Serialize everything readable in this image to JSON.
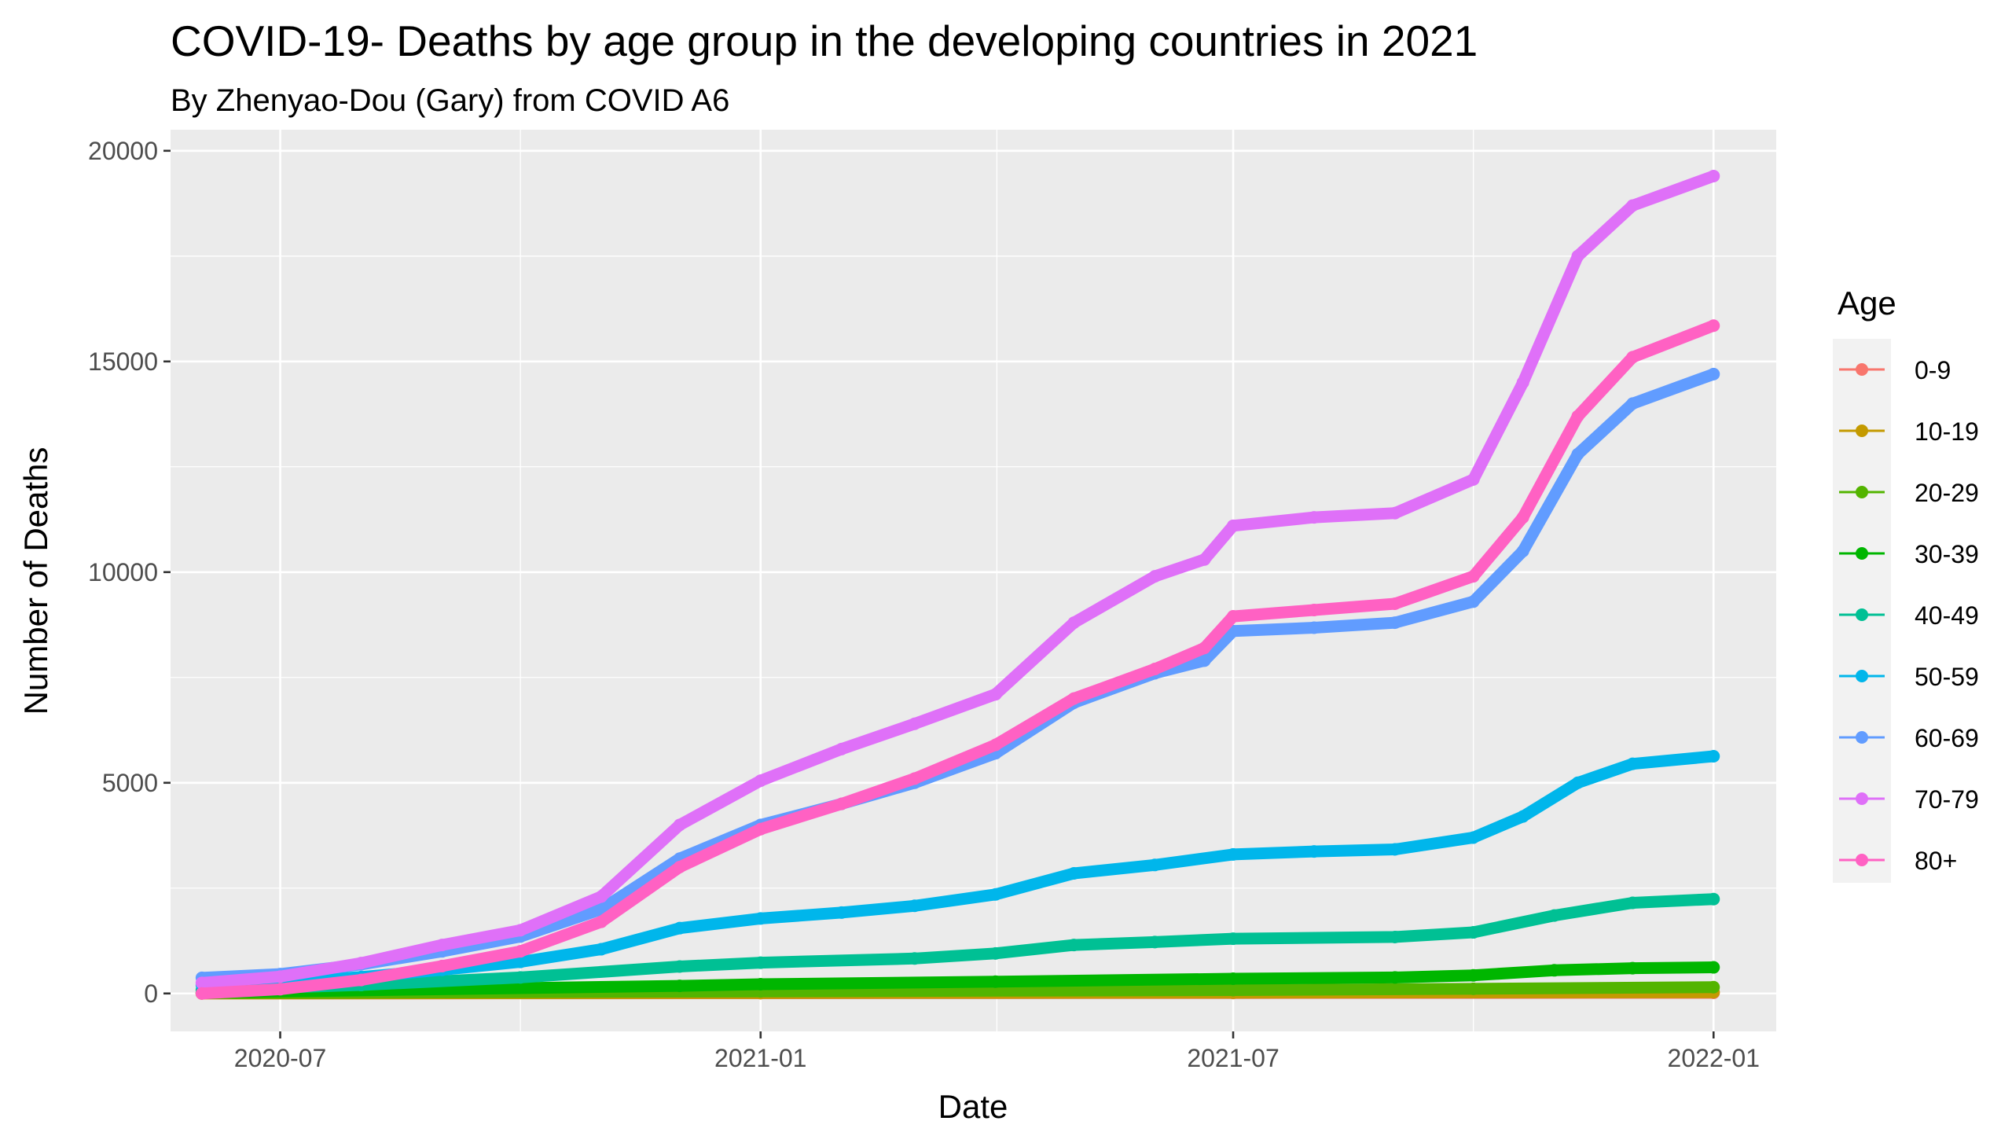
{
  "chart_data": {
    "type": "line",
    "title": "COVID-19- Deaths by age group in the developing countries in 2021",
    "subtitle": "By Zhenyao-Dou (Gary) from COVID A6",
    "xlabel": "Date",
    "ylabel": "Number of Deaths",
    "xlim": [
      "2020-05-20",
      "2022-01-25"
    ],
    "ylim": [
      -900,
      20500
    ],
    "x_ticks": [
      {
        "date": "2020-07-01",
        "label": "2020-07"
      },
      {
        "date": "2021-01-01",
        "label": "2021-01"
      },
      {
        "date": "2021-07-01",
        "label": "2021-07"
      },
      {
        "date": "2022-01-01",
        "label": "2022-01"
      }
    ],
    "y_ticks": [
      {
        "value": 0,
        "label": "0"
      },
      {
        "value": 5000,
        "label": "5000"
      },
      {
        "value": 10000,
        "label": "10000"
      },
      {
        "value": 15000,
        "label": "15000"
      },
      {
        "value": 20000,
        "label": "20000"
      }
    ],
    "grid": true,
    "legend": {
      "title": "Age",
      "position": "right"
    },
    "series": [
      {
        "name": "0-9",
        "color": "#F8766D",
        "points": [
          [
            "2020-06-01",
            0
          ],
          [
            "2021-01-01",
            5
          ],
          [
            "2021-07-01",
            10
          ],
          [
            "2022-01-01",
            15
          ]
        ]
      },
      {
        "name": "10-19",
        "color": "#C49A00",
        "points": [
          [
            "2020-06-01",
            0
          ],
          [
            "2021-01-01",
            10
          ],
          [
            "2021-07-01",
            20
          ],
          [
            "2022-01-01",
            30
          ]
        ]
      },
      {
        "name": "20-29",
        "color": "#53B400",
        "points": [
          [
            "2020-06-01",
            5
          ],
          [
            "2021-01-01",
            50
          ],
          [
            "2021-07-01",
            80
          ],
          [
            "2021-10-01",
            110
          ],
          [
            "2022-01-01",
            150
          ]
        ]
      },
      {
        "name": "30-39",
        "color": "#00B600",
        "points": [
          [
            "2020-06-01",
            20
          ],
          [
            "2020-12-01",
            180
          ],
          [
            "2021-01-01",
            220
          ],
          [
            "2021-04-01",
            280
          ],
          [
            "2021-07-01",
            350
          ],
          [
            "2021-09-01",
            380
          ],
          [
            "2021-10-01",
            430
          ],
          [
            "2021-11-01",
            550
          ],
          [
            "2021-12-01",
            600
          ],
          [
            "2022-01-01",
            620
          ]
        ]
      },
      {
        "name": "40-49",
        "color": "#00C094",
        "points": [
          [
            "2020-06-01",
            80
          ],
          [
            "2020-08-01",
            200
          ],
          [
            "2020-10-01",
            380
          ],
          [
            "2020-12-01",
            640
          ],
          [
            "2021-01-01",
            730
          ],
          [
            "2021-03-01",
            830
          ],
          [
            "2021-04-01",
            950
          ],
          [
            "2021-05-01",
            1150
          ],
          [
            "2021-06-01",
            1220
          ],
          [
            "2021-07-01",
            1300
          ],
          [
            "2021-09-01",
            1340
          ],
          [
            "2021-10-01",
            1450
          ],
          [
            "2021-11-01",
            1850
          ],
          [
            "2021-12-01",
            2150
          ],
          [
            "2022-01-01",
            2240
          ]
        ]
      },
      {
        "name": "50-59",
        "color": "#00B6EB",
        "points": [
          [
            "2020-06-01",
            200
          ],
          [
            "2020-07-01",
            260
          ],
          [
            "2020-08-01",
            390
          ],
          [
            "2020-09-01",
            560
          ],
          [
            "2020-10-01",
            750
          ],
          [
            "2020-11-01",
            1050
          ],
          [
            "2020-12-01",
            1550
          ],
          [
            "2021-01-01",
            1780
          ],
          [
            "2021-02-01",
            1920
          ],
          [
            "2021-03-01",
            2080
          ],
          [
            "2021-04-01",
            2350
          ],
          [
            "2021-05-01",
            2850
          ],
          [
            "2021-06-01",
            3050
          ],
          [
            "2021-07-01",
            3300
          ],
          [
            "2021-08-01",
            3370
          ],
          [
            "2021-09-01",
            3420
          ],
          [
            "2021-10-01",
            3700
          ],
          [
            "2021-10-20",
            4200
          ],
          [
            "2021-11-10",
            5000
          ],
          [
            "2021-12-01",
            5450
          ],
          [
            "2022-01-01",
            5630
          ]
        ]
      },
      {
        "name": "60-69",
        "color": "#619CFF",
        "points": [
          [
            "2020-06-01",
            370
          ],
          [
            "2020-07-01",
            460
          ],
          [
            "2020-08-01",
            690
          ],
          [
            "2020-09-01",
            1000
          ],
          [
            "2020-10-01",
            1350
          ],
          [
            "2020-11-01",
            2000
          ],
          [
            "2020-12-01",
            3200
          ],
          [
            "2021-01-01",
            4000
          ],
          [
            "2021-02-01",
            4500
          ],
          [
            "2021-03-01",
            5000
          ],
          [
            "2021-04-01",
            5700
          ],
          [
            "2021-05-01",
            6900
          ],
          [
            "2021-06-01",
            7600
          ],
          [
            "2021-06-20",
            7900
          ],
          [
            "2021-07-01",
            8600
          ],
          [
            "2021-08-01",
            8680
          ],
          [
            "2021-09-01",
            8800
          ],
          [
            "2021-10-01",
            9300
          ],
          [
            "2021-10-20",
            10500
          ],
          [
            "2021-11-10",
            12800
          ],
          [
            "2021-12-01",
            14000
          ],
          [
            "2022-01-01",
            14700
          ]
        ]
      },
      {
        "name": "70-79",
        "color": "#DF70F8",
        "points": [
          [
            "2020-06-01",
            250
          ],
          [
            "2020-07-01",
            400
          ],
          [
            "2020-08-01",
            720
          ],
          [
            "2020-09-01",
            1150
          ],
          [
            "2020-10-01",
            1500
          ],
          [
            "2020-11-01",
            2300
          ],
          [
            "2020-12-01",
            4000
          ],
          [
            "2021-01-01",
            5050
          ],
          [
            "2021-02-01",
            5800
          ],
          [
            "2021-03-01",
            6400
          ],
          [
            "2021-04-01",
            7100
          ],
          [
            "2021-05-01",
            8800
          ],
          [
            "2021-06-01",
            9900
          ],
          [
            "2021-06-20",
            10300
          ],
          [
            "2021-07-01",
            11100
          ],
          [
            "2021-08-01",
            11300
          ],
          [
            "2021-09-01",
            11400
          ],
          [
            "2021-10-01",
            12200
          ],
          [
            "2021-10-20",
            14500
          ],
          [
            "2021-11-10",
            17500
          ],
          [
            "2021-12-01",
            18700
          ],
          [
            "2022-01-01",
            19400
          ]
        ]
      },
      {
        "name": "80+",
        "color": "#FF61C3",
        "points": [
          [
            "2020-06-01",
            0
          ],
          [
            "2020-07-01",
            100
          ],
          [
            "2020-08-01",
            320
          ],
          [
            "2020-09-01",
            650
          ],
          [
            "2020-10-01",
            1000
          ],
          [
            "2020-11-01",
            1700
          ],
          [
            "2020-12-01",
            3000
          ],
          [
            "2021-01-01",
            3900
          ],
          [
            "2021-02-01",
            4500
          ],
          [
            "2021-03-01",
            5100
          ],
          [
            "2021-04-01",
            5900
          ],
          [
            "2021-05-01",
            7000
          ],
          [
            "2021-06-01",
            7700
          ],
          [
            "2021-06-20",
            8200
          ],
          [
            "2021-07-01",
            8950
          ],
          [
            "2021-08-01",
            9100
          ],
          [
            "2021-09-01",
            9250
          ],
          [
            "2021-10-01",
            9900
          ],
          [
            "2021-10-20",
            11300
          ],
          [
            "2021-11-10",
            13700
          ],
          [
            "2021-12-01",
            15100
          ],
          [
            "2022-01-01",
            15850
          ]
        ]
      }
    ]
  }
}
